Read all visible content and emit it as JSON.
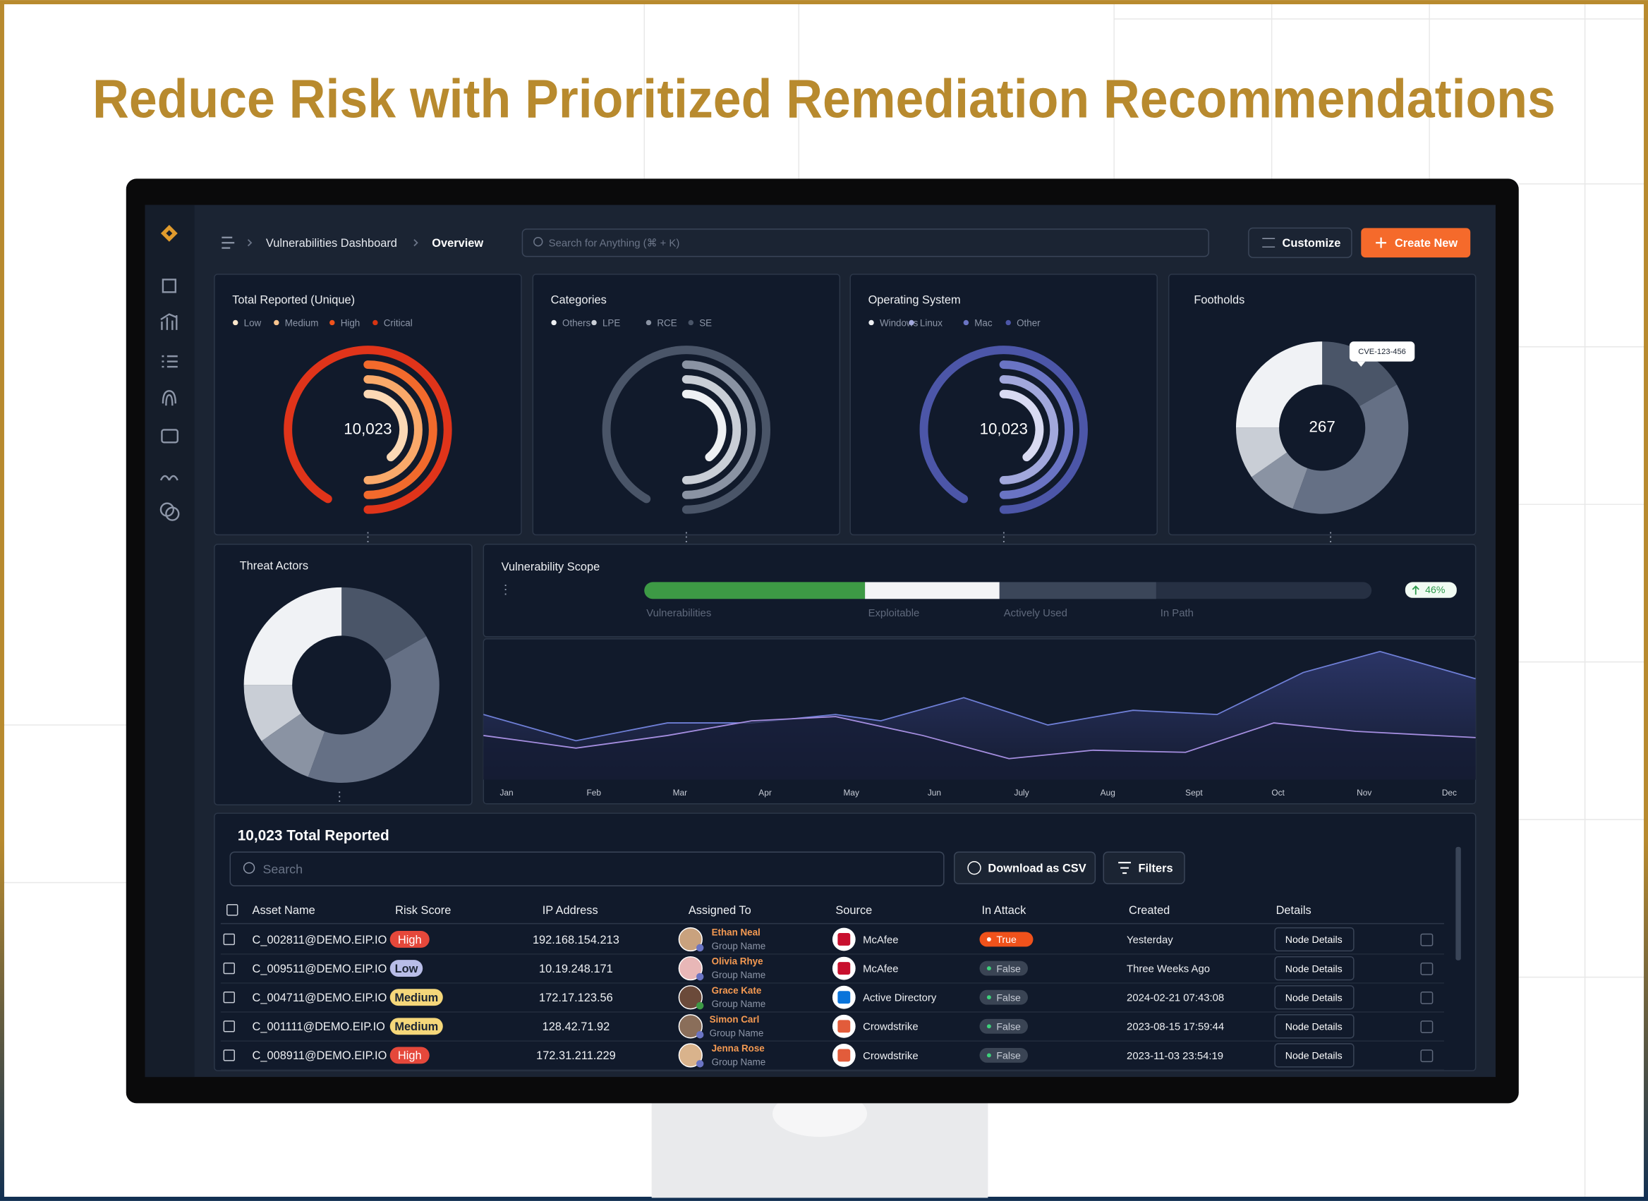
{
  "title": "Reduce Risk with Prioritized Remediation Recommendations",
  "breadcrumb": [
    "Vulnerabilities Dashboard",
    "Overview"
  ],
  "search_placeholder": "Search for Anything (⌘ + K)",
  "buttons": {
    "customize": "Customize",
    "create": "Create New"
  },
  "cards": [
    {
      "title": "Total Reported (Unique)",
      "legend": [
        "Low",
        "Medium",
        "High",
        "Critical"
      ],
      "center": "10,023"
    },
    {
      "title": "Categories",
      "legend": [
        "Others",
        "LPE",
        "RCE",
        "SE"
      ]
    },
    {
      "title": "Operating System",
      "legend": [
        "Windows",
        "Linux",
        "Mac",
        "Other"
      ],
      "center": "10,023"
    },
    {
      "title": "Footholds",
      "center": "267",
      "tooltip": "CVE-123-456"
    }
  ],
  "threat_actors": {
    "title": "Threat Actors"
  },
  "scope": {
    "title": "Vulnerability Scope",
    "labels": [
      "Vulnerabilities",
      "Exploitable",
      "Actively Used",
      "In Path"
    ],
    "change": "46%"
  },
  "months": [
    "Jan",
    "Feb",
    "Mar",
    "Apr",
    "May",
    "Jun",
    "July",
    "Aug",
    "Sept",
    "Oct",
    "Nov",
    "Dec"
  ],
  "table": {
    "title": "10,023 Total Reported",
    "search": "Search",
    "download": "Download as CSV",
    "filters": "Filters",
    "columns": [
      "Asset Name",
      "Risk Score",
      "IP Address",
      "Assigned To",
      "Source",
      "In Attack",
      "Created",
      "Details"
    ],
    "rows": [
      [
        "C_002811@DEMO.EIP.IO",
        "High",
        "192.168.154.213",
        "Ethan Neal",
        "Group Name",
        "McAfee",
        "True",
        "Yesterday",
        "Node Details"
      ],
      [
        "C_009511@DEMO.EIP.IO",
        "Low",
        "10.19.248.171",
        "Olivia Rhye",
        "Group Name",
        "McAfee",
        "False",
        "Three Weeks Ago",
        "Node Details"
      ],
      [
        "C_004711@DEMO.EIP.IO",
        "Medium",
        "172.17.123.56",
        "Grace Kate",
        "Group Name",
        "Active Directory",
        "False",
        "2024-02-21 07:43:08",
        "Node Details"
      ],
      [
        "C_001111@DEMO.EIP.IO",
        "Medium",
        "128.42.71.92",
        "Simon Carl",
        "Group Name",
        "Crowdstrike",
        "False",
        "2023-08-15 17:59:44",
        "Node Details"
      ],
      [
        "C_008911@DEMO.EIP.IO",
        "High",
        "172.31.211.229",
        "Jenna Rose",
        "Group Name",
        "Crowdstrike",
        "False",
        "2023-11-03 23:54:19",
        "Node Details"
      ]
    ]
  }
}
